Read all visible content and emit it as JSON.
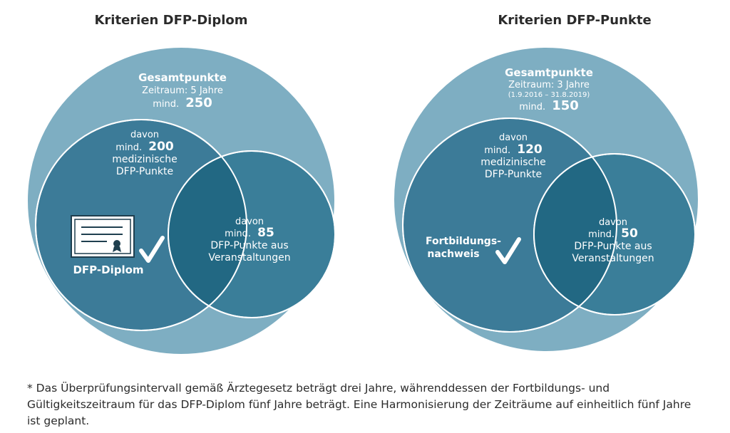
{
  "colors": {
    "outer": "#7eaec2",
    "middle": "#3c7b98",
    "inner": "#3a7e99",
    "overlap": "#226883",
    "stroke": "#ffffff"
  },
  "left": {
    "title": "Kriterien DFP-Diplom",
    "outer": {
      "heading": "Gesamtpunkte",
      "period": "Zeitraum: 5 Jahre",
      "min_prefix": "mind.",
      "min_value": "250"
    },
    "middle": {
      "davon": "davon",
      "min_prefix": "mind.",
      "min_value": "200",
      "line1": "medizinische",
      "line2": "DFP-Punkte"
    },
    "inner": {
      "davon": "davon",
      "min_prefix": "mind.",
      "min_value": "85",
      "line1": "DFP-Punkte aus",
      "line2": "Veranstaltungen"
    },
    "badge": {
      "label": "DFP-Diplom",
      "icon": "certificate-icon",
      "check": "checkmark-icon"
    }
  },
  "right": {
    "title": "Kriterien DFP-Punkte",
    "outer": {
      "heading": "Gesamtpunkte",
      "period": "Zeitraum: 3 Jahre",
      "dates": "(1.9.2016 – 31.8.2019)",
      "min_prefix": "mind.",
      "min_value": "150"
    },
    "middle": {
      "davon": "davon",
      "min_prefix": "mind.",
      "min_value": "120",
      "line1": "medizinische",
      "line2": "DFP-Punkte"
    },
    "inner": {
      "davon": "davon",
      "min_prefix": "mind.",
      "min_value": "50",
      "line1": "DFP-Punkte aus",
      "line2": "Veranstaltungen"
    },
    "badge": {
      "line1": "Fortbildungs-",
      "line2": "nachweis",
      "check": "checkmark-icon"
    }
  },
  "footnote": "* Das Überprüfungsintervall gemäß Ärztegesetz beträgt drei Jahre, währenddessen der Fortbildungs- und Gültigkeitszeitraum für das DFP-Diplom fünf Jahre beträgt. Eine Harmonisierung der Zeiträume auf einheitlich fünf Jahre ist geplant."
}
